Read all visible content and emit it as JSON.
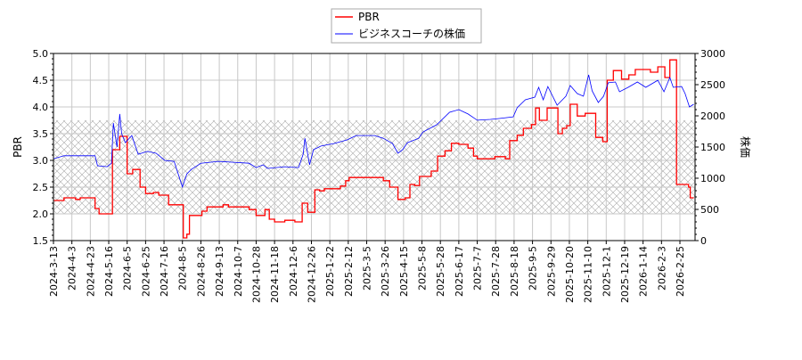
{
  "chart_data": {
    "type": "line",
    "xlabel": "",
    "ylabel_left": "PBR",
    "ylabel_right": "株価",
    "ylim_left": [
      1.5,
      5.0
    ],
    "ylim_right": [
      0,
      3000
    ],
    "yticks_left": [
      "1.5",
      "2.0",
      "2.5",
      "3.0",
      "3.5",
      "4.0",
      "4.5",
      "5.0"
    ],
    "yticks_right": [
      "0",
      "500",
      "1000",
      "1500",
      "2000",
      "2500",
      "3000"
    ],
    "grid": true,
    "legend_position": "top-center",
    "shaded_band_pbr": [
      2.0,
      3.75
    ],
    "xticks": [
      "2024-3-13",
      "2024-4-3",
      "2024-4-23",
      "2024-5-16",
      "2024-6-5",
      "2024-6-25",
      "2024-7-16",
      "2024-8-5",
      "2024-8-26",
      "2024-9-13",
      "2024-10-7",
      "2024-10-28",
      "2024-11-18",
      "2024-12-6",
      "2024-12-26",
      "2025-1-22",
      "2025-2-12",
      "2025-3-5",
      "2025-3-26",
      "2025-4-15",
      "2025-5-8",
      "2025-5-28",
      "2025-6-17",
      "2025-7-7",
      "2025-7-28",
      "2025-8-18",
      "2025-9-5",
      "2025-9-29",
      "2025-10-20",
      "2025-11-10",
      "2025-12-1",
      "2025-12-19",
      "2026-1-14",
      "2026-2-3",
      "2026-2-25"
    ],
    "series": [
      {
        "name": "PBR",
        "axis": "left",
        "color": "#ff0000",
        "step": true,
        "points": [
          [
            "2024-3-13",
            2.25
          ],
          [
            "2024-3-25",
            2.3
          ],
          [
            "2024-4-7",
            2.27
          ],
          [
            "2024-4-12",
            2.3
          ],
          [
            "2024-4-29",
            2.1
          ],
          [
            "2024-5-4",
            2.0
          ],
          [
            "2024-5-20",
            3.2
          ],
          [
            "2024-5-28",
            3.45
          ],
          [
            "2024-6-5",
            2.75
          ],
          [
            "2024-6-11",
            2.83
          ],
          [
            "2024-6-19",
            2.5
          ],
          [
            "2024-6-25",
            2.38
          ],
          [
            "2024-7-4",
            2.4
          ],
          [
            "2024-7-10",
            2.35
          ],
          [
            "2024-7-21",
            2.17
          ],
          [
            "2024-8-6",
            1.55
          ],
          [
            "2024-8-10",
            1.62
          ],
          [
            "2024-8-13",
            1.97
          ],
          [
            "2024-8-27",
            2.05
          ],
          [
            "2024-9-1",
            2.13
          ],
          [
            "2024-9-18",
            2.17
          ],
          [
            "2024-9-25",
            2.13
          ],
          [
            "2024-10-20",
            2.08
          ],
          [
            "2024-10-28",
            1.97
          ],
          [
            "2024-11-7",
            2.08
          ],
          [
            "2024-11-12",
            1.9
          ],
          [
            "2024-11-18",
            1.85
          ],
          [
            "2024-11-28",
            1.88
          ],
          [
            "2024-12-8",
            1.85
          ],
          [
            "2024-12-16",
            2.2
          ],
          [
            "2024-12-22",
            2.03
          ],
          [
            "2024-12-31",
            2.45
          ],
          [
            "2025-1-7",
            2.43
          ],
          [
            "2025-1-14",
            2.47
          ],
          [
            "2025-2-3",
            2.52
          ],
          [
            "2025-2-9",
            2.62
          ],
          [
            "2025-2-13",
            2.68
          ],
          [
            "2025-3-24",
            2.62
          ],
          [
            "2025-3-31",
            2.5
          ],
          [
            "2025-4-9",
            2.27
          ],
          [
            "2025-4-17",
            2.3
          ],
          [
            "2025-4-23",
            2.55
          ],
          [
            "2025-4-29",
            2.53
          ],
          [
            "2025-5-5",
            2.7
          ],
          [
            "2025-5-18",
            2.8
          ],
          [
            "2025-5-25",
            3.08
          ],
          [
            "2025-6-2",
            3.18
          ],
          [
            "2025-6-9",
            3.32
          ],
          [
            "2025-6-17",
            3.3
          ],
          [
            "2025-6-27",
            3.23
          ],
          [
            "2025-7-3",
            3.08
          ],
          [
            "2025-7-7",
            3.03
          ],
          [
            "2025-7-27",
            3.07
          ],
          [
            "2025-8-8",
            3.03
          ],
          [
            "2025-8-13",
            3.37
          ],
          [
            "2025-8-21",
            3.47
          ],
          [
            "2025-8-27",
            3.6
          ],
          [
            "2025-9-4",
            3.67
          ],
          [
            "2025-9-9",
            3.98
          ],
          [
            "2025-9-14",
            3.75
          ],
          [
            "2025-9-24",
            3.98
          ],
          [
            "2025-10-7",
            3.5
          ],
          [
            "2025-10-12",
            3.6
          ],
          [
            "2025-10-17",
            3.65
          ],
          [
            "2025-10-21",
            4.05
          ],
          [
            "2025-10-29",
            3.83
          ],
          [
            "2025-11-7",
            3.88
          ],
          [
            "2025-11-19",
            3.43
          ],
          [
            "2025-11-27",
            3.35
          ],
          [
            "2025-12-2",
            4.5
          ],
          [
            "2025-12-8",
            4.68
          ],
          [
            "2025-12-16",
            4.52
          ],
          [
            "2025-12-25",
            4.6
          ],
          [
            "2026-1-3",
            4.7
          ],
          [
            "2026-1-22",
            4.65
          ],
          [
            "2026-1-30",
            4.75
          ],
          [
            "2026-2-7",
            4.55
          ],
          [
            "2026-2-13",
            4.88
          ],
          [
            "2026-2-21",
            2.55
          ],
          [
            "2026-3-7",
            2.5
          ],
          [
            "2026-3-9",
            2.3
          ],
          [
            "2026-3-13",
            2.3
          ]
        ]
      },
      {
        "name": "ビジネスコーチの株価",
        "axis": "right",
        "color": "#0000ff",
        "step": false,
        "points": [
          [
            "2024-3-13",
            1310
          ],
          [
            "2024-3-25",
            1360
          ],
          [
            "2024-4-29",
            1360
          ],
          [
            "2024-5-2",
            1200
          ],
          [
            "2024-5-14",
            1185
          ],
          [
            "2024-5-19",
            1240
          ],
          [
            "2024-5-21",
            1885
          ],
          [
            "2024-5-25",
            1500
          ],
          [
            "2024-5-28",
            2030
          ],
          [
            "2024-5-30",
            1715
          ],
          [
            "2024-6-3",
            1570
          ],
          [
            "2024-6-10",
            1685
          ],
          [
            "2024-6-17",
            1385
          ],
          [
            "2024-6-27",
            1430
          ],
          [
            "2024-7-7",
            1400
          ],
          [
            "2024-7-17",
            1285
          ],
          [
            "2024-7-27",
            1270
          ],
          [
            "2024-8-5",
            860
          ],
          [
            "2024-8-10",
            1070
          ],
          [
            "2024-8-15",
            1140
          ],
          [
            "2024-8-26",
            1240
          ],
          [
            "2024-9-12",
            1270
          ],
          [
            "2024-9-29",
            1257
          ],
          [
            "2024-10-20",
            1240
          ],
          [
            "2024-10-28",
            1170
          ],
          [
            "2024-11-5",
            1215
          ],
          [
            "2024-11-10",
            1157
          ],
          [
            "2024-11-28",
            1185
          ],
          [
            "2024-12-12",
            1170
          ],
          [
            "2024-12-17",
            1385
          ],
          [
            "2024-12-19",
            1640
          ],
          [
            "2024-12-24",
            1215
          ],
          [
            "2024-12-29",
            1457
          ],
          [
            "2025-1-9",
            1515
          ],
          [
            "2025-1-27",
            1557
          ],
          [
            "2025-2-11",
            1615
          ],
          [
            "2025-2-21",
            1685
          ],
          [
            "2025-3-14",
            1685
          ],
          [
            "2025-3-24",
            1640
          ],
          [
            "2025-4-3",
            1557
          ],
          [
            "2025-4-9",
            1400
          ],
          [
            "2025-4-14",
            1457
          ],
          [
            "2025-4-20",
            1570
          ],
          [
            "2025-5-4",
            1640
          ],
          [
            "2025-5-9",
            1740
          ],
          [
            "2025-5-24",
            1857
          ],
          [
            "2025-6-7",
            2057
          ],
          [
            "2025-6-17",
            2100
          ],
          [
            "2025-6-27",
            2030
          ],
          [
            "2025-7-7",
            1930
          ],
          [
            "2025-7-22",
            1943
          ],
          [
            "2025-8-1",
            1957
          ],
          [
            "2025-8-17",
            1985
          ],
          [
            "2025-8-21",
            2130
          ],
          [
            "2025-8-29",
            2257
          ],
          [
            "2025-9-8",
            2300
          ],
          [
            "2025-9-13",
            2457
          ],
          [
            "2025-9-19",
            2257
          ],
          [
            "2025-9-25",
            2470
          ],
          [
            "2025-10-6",
            2170
          ],
          [
            "2025-10-16",
            2314
          ],
          [
            "2025-10-21",
            2486
          ],
          [
            "2025-10-29",
            2357
          ],
          [
            "2025-11-5",
            2314
          ],
          [
            "2025-11-11",
            2657
          ],
          [
            "2025-11-15",
            2400
          ],
          [
            "2025-11-22",
            2214
          ],
          [
            "2025-11-28",
            2314
          ],
          [
            "2025-12-3",
            2530
          ],
          [
            "2025-12-10",
            2543
          ],
          [
            "2025-12-14",
            2386
          ],
          [
            "2025-12-24",
            2457
          ],
          [
            "2026-1-6",
            2543
          ],
          [
            "2026-1-17",
            2457
          ],
          [
            "2026-1-30",
            2570
          ],
          [
            "2026-2-6",
            2386
          ],
          [
            "2026-2-13",
            2614
          ],
          [
            "2026-2-17",
            2457
          ],
          [
            "2026-2-27",
            2470
          ],
          [
            "2026-3-3",
            2357
          ],
          [
            "2026-3-8",
            2143
          ],
          [
            "2026-3-13",
            2186
          ]
        ]
      }
    ]
  }
}
